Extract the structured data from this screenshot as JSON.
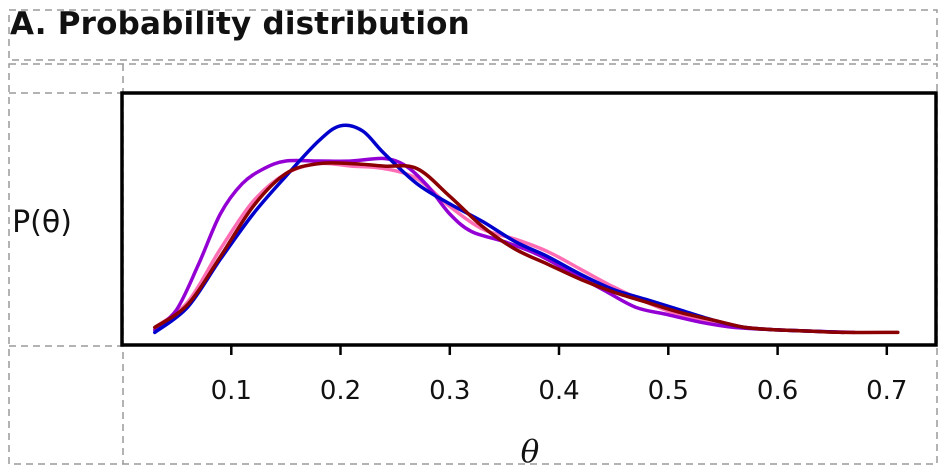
{
  "panel": {
    "title": "A. Probability distribution"
  },
  "chart_data": {
    "type": "line",
    "title": "A. Probability distribution",
    "xlabel": "θ",
    "ylabel": "P(θ)",
    "xlim": [
      0.0,
      0.745
    ],
    "ylim": [
      0.0,
      1.0
    ],
    "xticks": [
      0.1,
      0.2,
      0.3,
      0.4,
      0.5,
      0.6,
      0.7
    ],
    "xtick_labels": [
      "0.1",
      "0.2",
      "0.3",
      "0.4",
      "0.5",
      "0.6",
      "0.7"
    ],
    "yticks_shown": false,
    "grid": false,
    "legend": "none",
    "series": [
      {
        "color": "#ff6eb4",
        "x": [
          0.03,
          0.06,
          0.09,
          0.12,
          0.15,
          0.18,
          0.21,
          0.24,
          0.27,
          0.3,
          0.33,
          0.36,
          0.39,
          0.42,
          0.45,
          0.48,
          0.51,
          0.54,
          0.57,
          0.6,
          0.63,
          0.66
        ],
        "y": [
          0.07,
          0.17,
          0.38,
          0.57,
          0.68,
          0.72,
          0.71,
          0.7,
          0.66,
          0.55,
          0.46,
          0.42,
          0.37,
          0.3,
          0.23,
          0.17,
          0.12,
          0.09,
          0.07,
          0.06,
          0.055,
          0.05
        ]
      },
      {
        "color": "#9400d3",
        "x": [
          0.03,
          0.05,
          0.07,
          0.09,
          0.11,
          0.13,
          0.15,
          0.18,
          0.21,
          0.24,
          0.26,
          0.28,
          0.3,
          0.32,
          0.35,
          0.38,
          0.41,
          0.44,
          0.47,
          0.5,
          0.53,
          0.56,
          0.6,
          0.63,
          0.67
        ],
        "y": [
          0.06,
          0.14,
          0.32,
          0.52,
          0.64,
          0.7,
          0.73,
          0.73,
          0.73,
          0.74,
          0.71,
          0.63,
          0.52,
          0.45,
          0.41,
          0.36,
          0.29,
          0.22,
          0.15,
          0.12,
          0.09,
          0.07,
          0.06,
          0.055,
          0.05
        ]
      },
      {
        "color": "#0000cd",
        "x": [
          0.03,
          0.06,
          0.09,
          0.12,
          0.15,
          0.18,
          0.2,
          0.22,
          0.24,
          0.27,
          0.3,
          0.33,
          0.36,
          0.39,
          0.42,
          0.45,
          0.48,
          0.51,
          0.54,
          0.57,
          0.6,
          0.63,
          0.66
        ],
        "y": [
          0.05,
          0.15,
          0.34,
          0.52,
          0.67,
          0.81,
          0.87,
          0.85,
          0.76,
          0.64,
          0.56,
          0.49,
          0.41,
          0.35,
          0.28,
          0.22,
          0.18,
          0.14,
          0.1,
          0.07,
          0.06,
          0.055,
          0.05
        ]
      },
      {
        "color": "#8b0000",
        "x": [
          0.03,
          0.06,
          0.09,
          0.12,
          0.15,
          0.18,
          0.21,
          0.24,
          0.27,
          0.3,
          0.33,
          0.36,
          0.39,
          0.42,
          0.45,
          0.48,
          0.51,
          0.54,
          0.57,
          0.6,
          0.63,
          0.66,
          0.71
        ],
        "y": [
          0.07,
          0.16,
          0.35,
          0.55,
          0.68,
          0.72,
          0.72,
          0.71,
          0.7,
          0.59,
          0.47,
          0.38,
          0.32,
          0.26,
          0.21,
          0.17,
          0.13,
          0.1,
          0.07,
          0.06,
          0.055,
          0.05,
          0.05
        ]
      }
    ]
  }
}
